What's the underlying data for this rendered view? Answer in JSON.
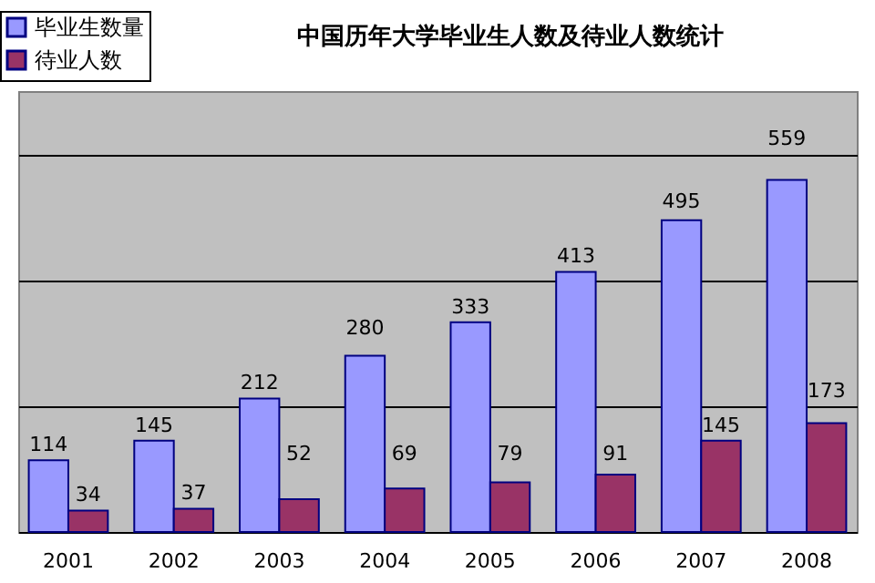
{
  "chart_data": {
    "type": "bar",
    "title": "中国历年大学毕业生人数及待业人数统计",
    "categories": [
      "2001",
      "2002",
      "2003",
      "2004",
      "2005",
      "2006",
      "2007",
      "2008"
    ],
    "series": [
      {
        "name": "毕业生数量",
        "color": "#9999ff",
        "values": [
          114,
          145,
          212,
          280,
          333,
          413,
          495,
          559
        ]
      },
      {
        "name": "待业人数",
        "color": "#993366",
        "values": [
          34,
          37,
          52,
          69,
          79,
          91,
          145,
          173
        ]
      }
    ],
    "data_labels": true,
    "ylim": [
      0,
      700
    ],
    "grid": "y",
    "tick_labels": "x",
    "legend": "top left"
  }
}
